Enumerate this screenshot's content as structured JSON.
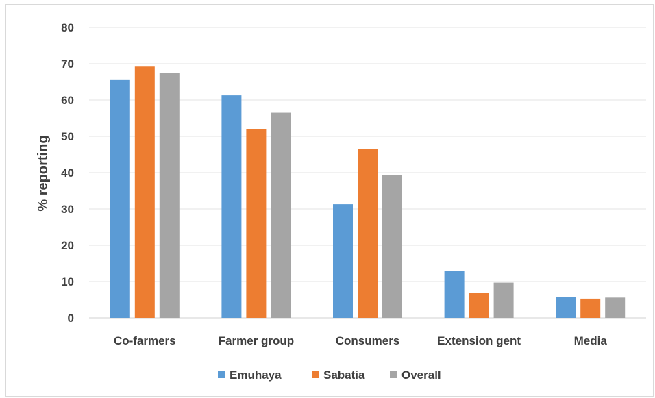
{
  "chart_data": {
    "type": "bar",
    "title": "",
    "xlabel": "",
    "ylabel": "% reporting",
    "ylim": [
      0,
      80
    ],
    "yticks": [
      0,
      10,
      20,
      30,
      40,
      50,
      60,
      70,
      80
    ],
    "grid": true,
    "legend_position": "bottom",
    "categories": [
      "Co-farmers",
      "Farmer group",
      "Consumers",
      "Extension gent",
      "Media"
    ],
    "series": [
      {
        "name": "Emuhaya",
        "color": "#5B9BD5",
        "values": [
          65.5,
          61.3,
          31.3,
          13.0,
          5.8
        ]
      },
      {
        "name": "Sabatia",
        "color": "#ED7D31",
        "values": [
          69.2,
          52.0,
          46.5,
          6.8,
          5.3
        ]
      },
      {
        "name": "Overall",
        "color": "#A5A5A5",
        "values": [
          67.5,
          56.5,
          39.3,
          9.7,
          5.6
        ]
      }
    ]
  }
}
